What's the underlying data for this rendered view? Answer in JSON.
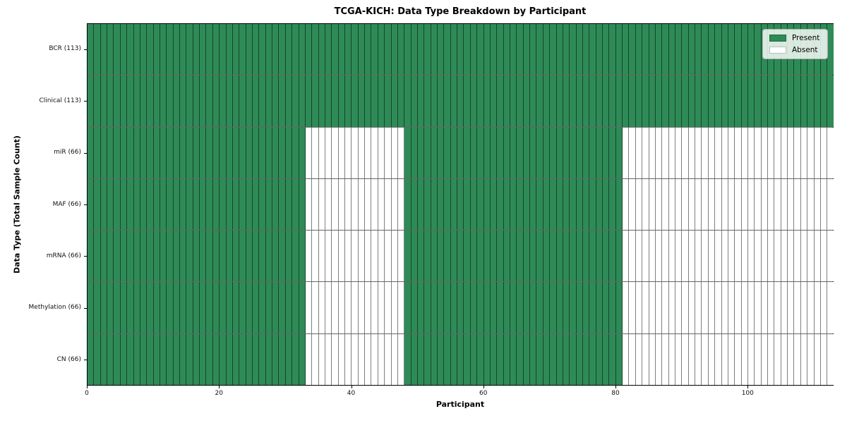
{
  "chart_data": {
    "type": "heatmap",
    "title": "TCGA-KICH: Data Type Breakdown by Participant",
    "xlabel": "Participant",
    "ylabel": "Data Type (Total Sample Count)",
    "n_participants": 113,
    "xlim": [
      0,
      113
    ],
    "x_ticks": [
      0,
      20,
      40,
      60,
      80,
      100
    ],
    "grid": false,
    "legend_position": "upper right",
    "legend": [
      {
        "label": "Present",
        "color": "#2e8b57"
      },
      {
        "label": "Absent",
        "color": "#ffffff"
      }
    ],
    "colors": {
      "present": "#2e8b57",
      "absent": "#ffffff",
      "cell_edge": "rgba(0,0,0,0.5)"
    },
    "rows": [
      {
        "name": "BCR",
        "label": "BCR (113)",
        "count": 113,
        "segments": [
          {
            "from": 0,
            "to": 113,
            "present": true
          }
        ]
      },
      {
        "name": "Clinical",
        "label": "Clinical (113)",
        "count": 113,
        "segments": [
          {
            "from": 0,
            "to": 113,
            "present": true
          }
        ]
      },
      {
        "name": "miR",
        "label": "miR (66)",
        "count": 66,
        "segments": [
          {
            "from": 0,
            "to": 33,
            "present": true
          },
          {
            "from": 33,
            "to": 48,
            "present": false
          },
          {
            "from": 48,
            "to": 81,
            "present": true
          },
          {
            "from": 81,
            "to": 113,
            "present": false
          }
        ]
      },
      {
        "name": "MAF",
        "label": "MAF (66)",
        "count": 66,
        "segments": [
          {
            "from": 0,
            "to": 33,
            "present": true
          },
          {
            "from": 33,
            "to": 48,
            "present": false
          },
          {
            "from": 48,
            "to": 81,
            "present": true
          },
          {
            "from": 81,
            "to": 113,
            "present": false
          }
        ]
      },
      {
        "name": "mRNA",
        "label": "mRNA (66)",
        "count": 66,
        "segments": [
          {
            "from": 0,
            "to": 33,
            "present": true
          },
          {
            "from": 33,
            "to": 48,
            "present": false
          },
          {
            "from": 48,
            "to": 81,
            "present": true
          },
          {
            "from": 81,
            "to": 113,
            "present": false
          }
        ]
      },
      {
        "name": "Methylation",
        "label": "Methylation (66)",
        "count": 66,
        "segments": [
          {
            "from": 0,
            "to": 33,
            "present": true
          },
          {
            "from": 33,
            "to": 48,
            "present": false
          },
          {
            "from": 48,
            "to": 81,
            "present": true
          },
          {
            "from": 81,
            "to": 113,
            "present": false
          }
        ]
      },
      {
        "name": "CN",
        "label": "CN (66)",
        "count": 66,
        "segments": [
          {
            "from": 0,
            "to": 33,
            "present": true
          },
          {
            "from": 33,
            "to": 48,
            "present": false
          },
          {
            "from": 48,
            "to": 81,
            "present": true
          },
          {
            "from": 81,
            "to": 113,
            "present": false
          }
        ]
      }
    ]
  }
}
